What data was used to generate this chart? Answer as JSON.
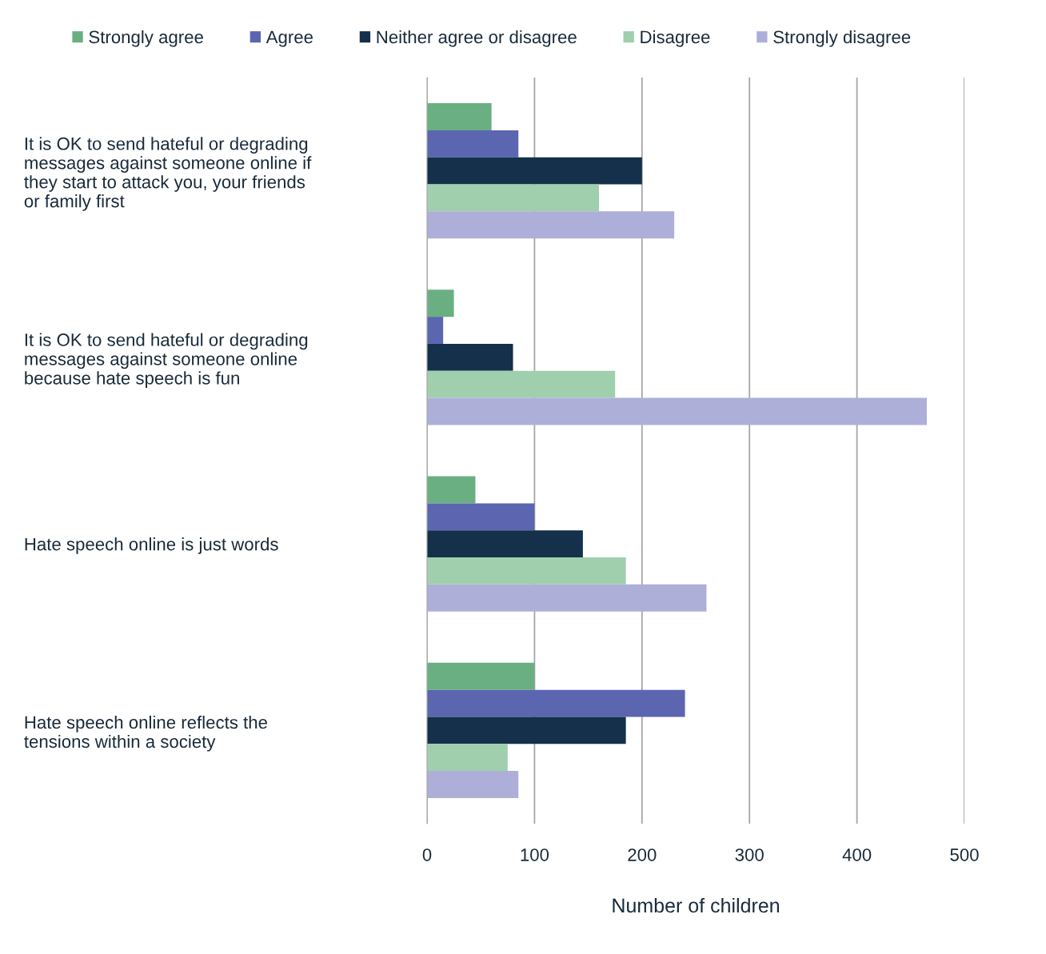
{
  "chart_data": {
    "type": "bar",
    "orientation": "horizontal",
    "xlabel": "Number of children",
    "categories": [
      "It is OK to send hateful or degrading\nmessages against someone online if\nthey start to attack you, your friends\nor family first",
      "It is OK to send hateful or degrading\nmessages against someone online\nbecause hate speech is fun",
      "Hate speech online is just words",
      "Hate speech online reflects the\ntensions within a society"
    ],
    "series": [
      {
        "name": "Strongly agree",
        "color": "#6aaf82",
        "values": [
          60,
          25,
          45,
          100
        ]
      },
      {
        "name": "Agree",
        "color": "#5b65b0",
        "values": [
          85,
          15,
          100,
          240
        ]
      },
      {
        "name": "Neither agree or disagree",
        "color": "#14304a",
        "values": [
          200,
          80,
          145,
          185
        ]
      },
      {
        "name": "Disagree",
        "color": "#9fcfad",
        "values": [
          160,
          175,
          185,
          75
        ]
      },
      {
        "name": "Strongly disagree",
        "color": "#aeafd8",
        "values": [
          230,
          465,
          260,
          85
        ]
      }
    ],
    "xlim": [
      0,
      500
    ],
    "xticks": [
      0,
      100,
      200,
      300,
      400,
      500
    ],
    "grid": "x",
    "legend": "top"
  }
}
